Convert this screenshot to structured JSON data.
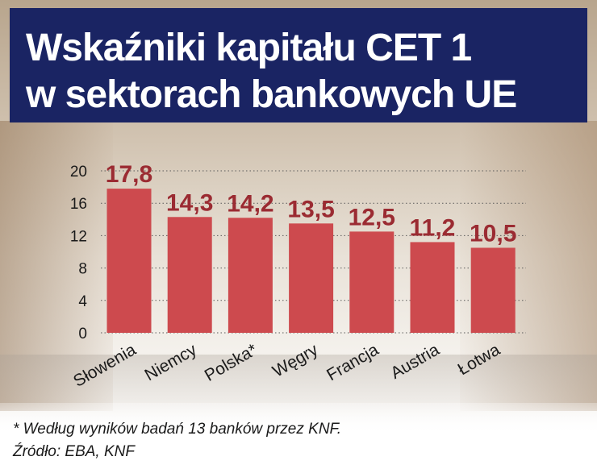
{
  "title": {
    "line1": "Wskaźniki kapitału CET 1",
    "line2": "w sektorach bankowych UE"
  },
  "colors": {
    "title_background": "#1a2463",
    "bar": "#cd4a4e",
    "value_label": "#9b2b32"
  },
  "chart_data": {
    "type": "bar",
    "categories": [
      "Słowenia",
      "Niemcy",
      "Polska*",
      "Węgry",
      "Francja",
      "Austria",
      "Łotwa"
    ],
    "values": [
      17.8,
      14.3,
      14.2,
      13.5,
      12.5,
      11.2,
      10.5
    ],
    "value_labels": [
      "17,8",
      "14,3",
      "14,2",
      "13,5",
      "12,5",
      "11,2",
      "10,5"
    ],
    "y_ticks": [
      0,
      4,
      8,
      12,
      16,
      20
    ],
    "ylim": [
      0,
      20
    ],
    "grid": "dotted horizontal",
    "legend": "none"
  },
  "footnotes": {
    "note": "* Według wyników badań 13 banków przez KNF.",
    "source": "Źródło: EBA, KNF"
  }
}
